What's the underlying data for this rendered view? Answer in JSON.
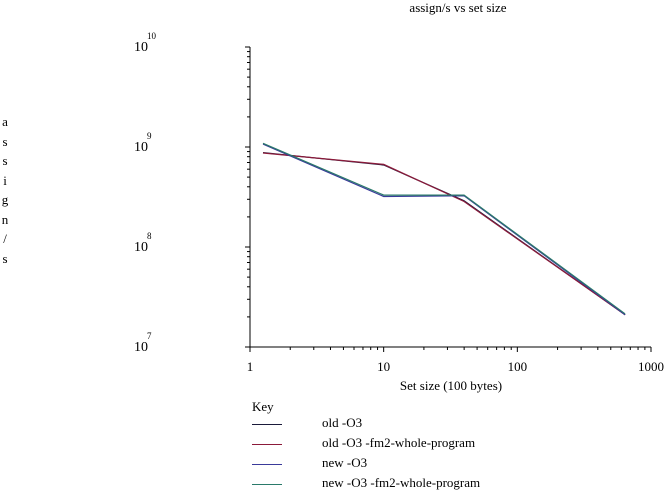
{
  "chart_data": {
    "type": "line",
    "title": "assign/s vs set size",
    "xlabel": "Set size (100 bytes)",
    "ylabel": "assign/s",
    "x_scale": "log",
    "y_scale": "log",
    "xlim": [
      1,
      1000
    ],
    "ylim": [
      10000000,
      10000000000
    ],
    "x_ticks": [
      {
        "value": 1,
        "label": "1"
      },
      {
        "value": 10,
        "label": "10"
      },
      {
        "value": 100,
        "label": "100"
      },
      {
        "value": 1000,
        "label": "1000"
      }
    ],
    "y_ticks": [
      {
        "value": 10000000,
        "base": "10",
        "exp": "7"
      },
      {
        "value": 100000000,
        "base": "10",
        "exp": "8"
      },
      {
        "value": 1000000000,
        "base": "10",
        "exp": "9"
      },
      {
        "value": 10000000000,
        "base": "10",
        "exp": "10"
      }
    ],
    "legend_title": "Key",
    "legend_position": "bottom",
    "series": [
      {
        "name": "old -O3",
        "color": "#1a1a3a",
        "x": [
          1.25,
          10,
          40,
          640
        ],
        "y": [
          880000000,
          660000000,
          290000000,
          21000000
        ]
      },
      {
        "name": "old -O3 -fm2-whole-program",
        "color": "#8b1a3a",
        "x": [
          1.25,
          10,
          40,
          640
        ],
        "y": [
          870000000,
          670000000,
          285000000,
          21000000
        ]
      },
      {
        "name": "new -O3",
        "color": "#3a3a9a",
        "x": [
          1.25,
          10,
          40,
          640
        ],
        "y": [
          1070000000,
          320000000,
          325000000,
          21000000
        ]
      },
      {
        "name": "new -O3 -fm2-whole-program",
        "color": "#2a7a6a",
        "x": [
          1.25,
          10,
          40,
          640
        ],
        "y": [
          1090000000,
          330000000,
          330000000,
          21500000
        ]
      }
    ]
  }
}
